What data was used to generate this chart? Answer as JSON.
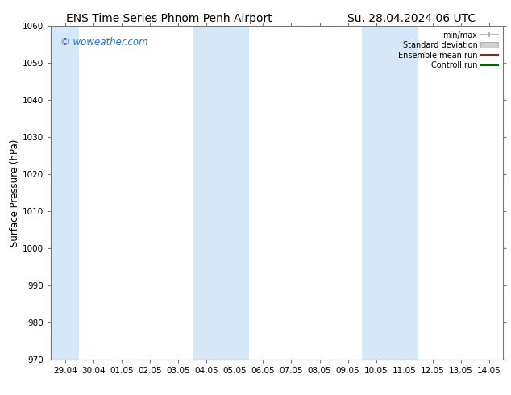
{
  "title_left": "ENS Time Series Phnom Penh Airport",
  "title_right": "Su. 28.04.2024 06 UTC",
  "ylabel": "Surface Pressure (hPa)",
  "ylim": [
    970,
    1060
  ],
  "yticks": [
    970,
    980,
    990,
    1000,
    1010,
    1020,
    1030,
    1040,
    1050,
    1060
  ],
  "xtick_labels": [
    "29.04",
    "30.04",
    "01.05",
    "02.05",
    "03.05",
    "04.05",
    "05.05",
    "06.05",
    "07.05",
    "08.05",
    "09.05",
    "10.05",
    "11.05",
    "12.05",
    "13.05",
    "14.05"
  ],
  "xtick_positions": [
    0,
    1,
    2,
    3,
    4,
    5,
    6,
    7,
    8,
    9,
    10,
    11,
    12,
    13,
    14,
    15
  ],
  "xlim": [
    -0.5,
    15.5
  ],
  "shaded_bands": [
    {
      "x_start": -0.5,
      "x_end": 0.5,
      "color": "#d6e8f7"
    },
    {
      "x_start": 4.5,
      "x_end": 6.5,
      "color": "#d6e8f7"
    },
    {
      "x_start": 10.5,
      "x_end": 12.5,
      "color": "#d6e8f7"
    }
  ],
  "watermark_text": "© woweather.com",
  "watermark_color": "#1a72d4",
  "background_color": "#ffffff",
  "title_fontsize": 10,
  "tick_fontsize": 7.5,
  "ylabel_fontsize": 8.5,
  "legend_labels": [
    "min/max",
    "Standard deviation",
    "Ensemble mean run",
    "Controll run"
  ],
  "legend_gray": "#aaaaaa",
  "legend_gray_fill": "#d0d0d0",
  "legend_red": "#dd0000",
  "legend_green": "#006600",
  "spine_color": "#777777",
  "tick_color": "#333333"
}
